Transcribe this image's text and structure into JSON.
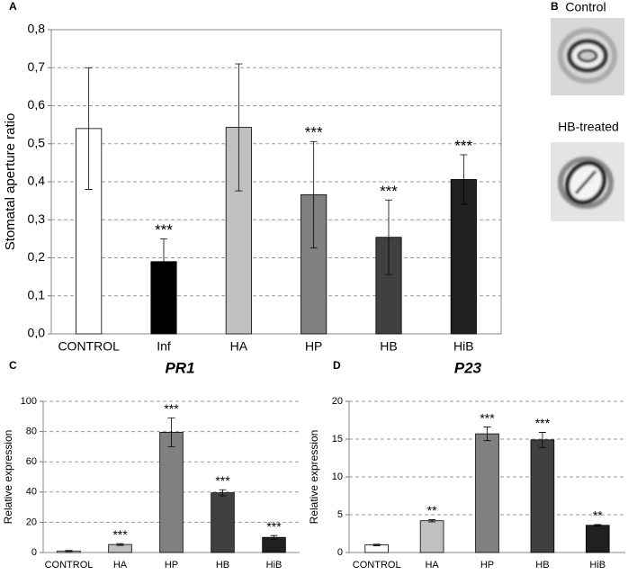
{
  "chart_data": [
    {
      "type": "bar",
      "panel_label": "A",
      "ylabel": "Stomatal aperture ratio",
      "categories": [
        "CONTROL",
        "Inf",
        "HA",
        "HP",
        "HB",
        "HiB"
      ],
      "values": [
        0.54,
        0.19,
        0.543,
        0.366,
        0.254,
        0.406
      ],
      "errors": [
        0.16,
        0.06,
        0.167,
        0.14,
        0.098,
        0.065
      ],
      "annotations": [
        null,
        "***",
        null,
        "***",
        "***",
        "***"
      ],
      "colors": [
        "#ffffff",
        "#000000",
        "#c0c0c0",
        "#808080",
        "#404040",
        "#202020"
      ],
      "ylim": [
        0,
        0.8
      ],
      "yticks": [
        {
          "value": 0,
          "label": "0,0"
        },
        {
          "value": 0.1,
          "label": "0,1"
        },
        {
          "value": 0.2,
          "label": "0,2"
        },
        {
          "value": 0.3,
          "label": "0,3"
        },
        {
          "value": 0.4,
          "label": "0,4"
        },
        {
          "value": 0.5,
          "label": "0,5"
        },
        {
          "value": 0.6,
          "label": "0,6"
        },
        {
          "value": 0.7,
          "label": "0,7"
        },
        {
          "value": 0.8,
          "label": "0,8"
        }
      ],
      "grid": true
    },
    {
      "type": "bar",
      "panel_label": "C",
      "title": "PR1",
      "ylabel": "Relative expression",
      "categories": [
        "CONTROL",
        "HA",
        "HP",
        "HB",
        "HiB"
      ],
      "values": [
        1,
        5.3,
        79.5,
        39.5,
        10
      ],
      "errors": [
        0.3,
        0.6,
        9.5,
        2,
        1.2
      ],
      "annotations": [
        null,
        "***",
        "***",
        "***",
        "***"
      ],
      "colors": [
        "#ffffff",
        "#c0c0c0",
        "#808080",
        "#404040",
        "#202020"
      ],
      "ylim": [
        0,
        100
      ],
      "yticks": [
        0,
        20,
        40,
        60,
        80,
        100
      ],
      "grid": true
    },
    {
      "type": "bar",
      "panel_label": "D",
      "title": "P23",
      "ylabel": "Relative expression",
      "categories": [
        "CONTROL",
        "HA",
        "HP",
        "HB",
        "HiB"
      ],
      "values": [
        1,
        4.2,
        15.7,
        14.9,
        3.6
      ],
      "errors": [
        0.1,
        0.15,
        0.9,
        1.0,
        0.1
      ],
      "annotations": [
        null,
        "**",
        "***",
        "***",
        "**"
      ],
      "colors": [
        "#ffffff",
        "#c0c0c0",
        "#808080",
        "#404040",
        "#202020"
      ],
      "ylim": [
        0,
        20
      ],
      "yticks": [
        0,
        5,
        10,
        15,
        20
      ],
      "grid": true
    }
  ],
  "panel_b": {
    "label": "B",
    "images": [
      {
        "caption": "Control"
      },
      {
        "caption": "HB-treated"
      }
    ]
  }
}
